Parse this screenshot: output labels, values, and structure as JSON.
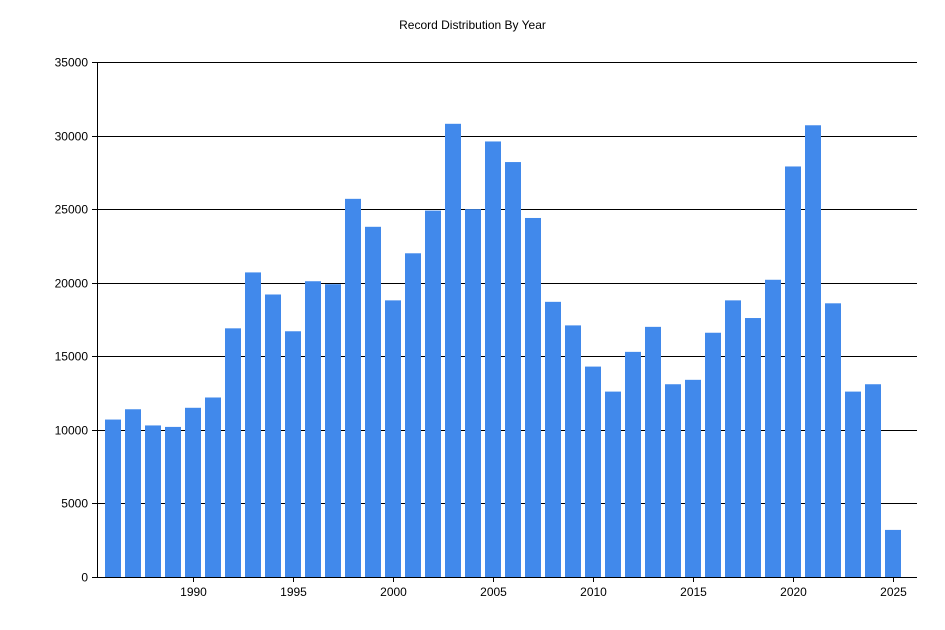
{
  "chart_data": {
    "type": "bar",
    "title": "Record Distribution By Year",
    "xlabel": "",
    "ylabel": "",
    "x": [
      1986,
      1987,
      1988,
      1989,
      1990,
      1991,
      1992,
      1993,
      1994,
      1995,
      1996,
      1997,
      1998,
      1999,
      2000,
      2001,
      2002,
      2003,
      2004,
      2005,
      2006,
      2007,
      2008,
      2009,
      2010,
      2011,
      2012,
      2013,
      2014,
      2015,
      2016,
      2017,
      2018,
      2019,
      2020,
      2021,
      2022,
      2023,
      2024,
      2025
    ],
    "values": [
      10700,
      11400,
      10300,
      10200,
      11500,
      12200,
      16900,
      20700,
      19200,
      16700,
      20100,
      19900,
      25700,
      23800,
      18800,
      22000,
      24900,
      30800,
      25000,
      29600,
      28200,
      24400,
      18700,
      17100,
      14300,
      12600,
      15300,
      17000,
      13100,
      13400,
      16600,
      18800,
      17600,
      20200,
      27900,
      30700,
      18600,
      12600,
      13100,
      3200
    ],
    "xlim": [
      1985.2,
      2026.2
    ],
    "ylim": [
      0,
      35000
    ],
    "xticks": [
      1990,
      1995,
      2000,
      2005,
      2010,
      2015,
      2020,
      2025
    ],
    "yticks": [
      0,
      5000,
      10000,
      15000,
      20000,
      25000,
      30000,
      35000
    ],
    "bar_color": "#4189EB",
    "grid": "horizontal",
    "legend": "none"
  }
}
